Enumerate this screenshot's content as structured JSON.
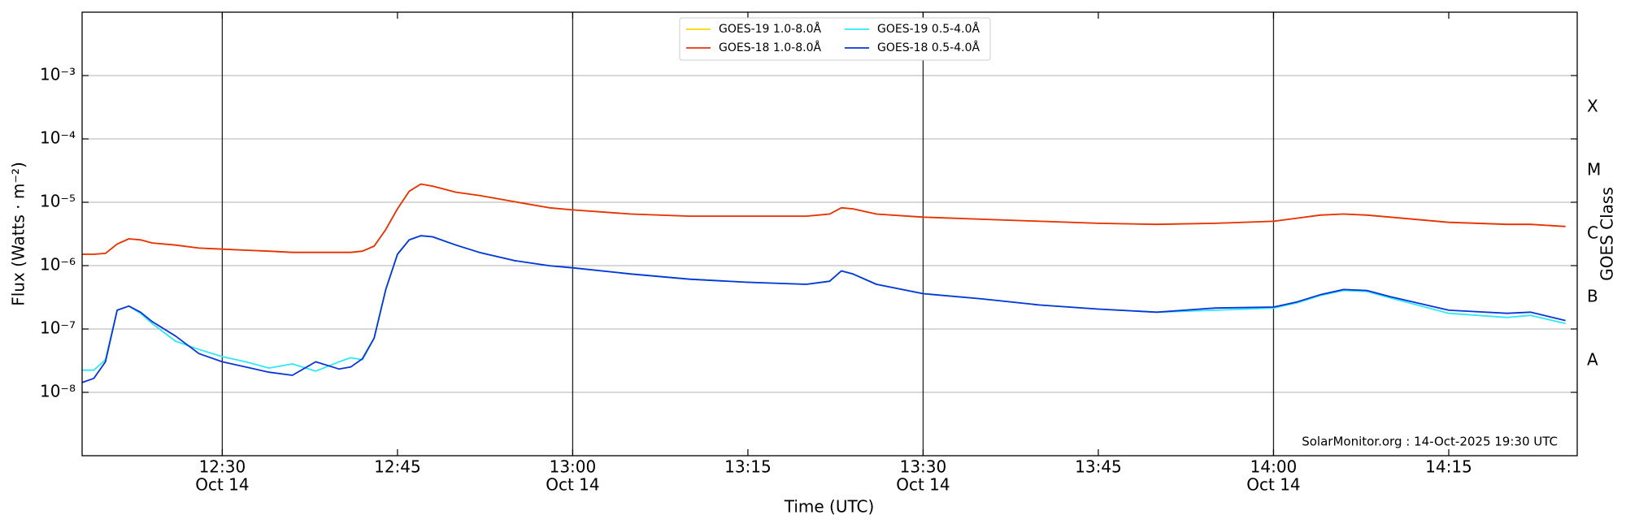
{
  "chart_data": {
    "type": "line",
    "xlabel": "Time (UTC)",
    "ylabel": "Flux (Watts · m⁻²)",
    "y2label": "GOES Class",
    "annotation": "SolarMonitor.org : 14-Oct-2025 19:30 UTC",
    "log_y": true,
    "grid": true,
    "legend": "upper center",
    "x": [
      "12:18",
      "12:19",
      "12:20",
      "12:21",
      "12:22",
      "12:23",
      "12:24",
      "12:26",
      "12:28",
      "12:30",
      "12:32",
      "12:34",
      "12:36",
      "12:38",
      "12:40",
      "12:41",
      "12:42",
      "12:43",
      "12:44",
      "12:45",
      "12:46",
      "12:47",
      "12:48",
      "12:50",
      "12:52",
      "12:55",
      "12:58",
      "13:00",
      "13:05",
      "13:10",
      "13:15",
      "13:20",
      "13:22",
      "13:23",
      "13:24",
      "13:26",
      "13:30",
      "13:35",
      "13:40",
      "13:45",
      "13:50",
      "13:55",
      "14:00",
      "14:02",
      "14:04",
      "14:06",
      "14:08",
      "14:10",
      "14:15",
      "14:20",
      "14:22",
      "14:25"
    ],
    "xlim": [
      "12:18",
      "14:26"
    ],
    "xticks": [
      {
        "value": "12:30",
        "date": "Oct 14"
      },
      "12:45",
      {
        "value": "13:00",
        "date": "Oct 14"
      },
      "13:15",
      {
        "value": "13:30",
        "date": "Oct 14"
      },
      "13:45",
      {
        "value": "14:00",
        "date": "Oct 14"
      },
      "14:15"
    ],
    "ylim": [
      1e-09,
      0.01
    ],
    "yticks": [
      {
        "value": 1e-08,
        "label": "10⁻⁸"
      },
      {
        "value": 1e-07,
        "label": "10⁻⁷"
      },
      {
        "value": 1e-06,
        "label": "10⁻⁶"
      },
      {
        "value": 1e-05,
        "label": "10⁻⁵"
      },
      {
        "value": 0.0001,
        "label": "10⁻⁴"
      },
      {
        "value": 0.001,
        "label": "10⁻³"
      }
    ],
    "y2lim": [
      1e-09,
      0.01
    ],
    "y2ticks": [
      {
        "value": 3.16e-08,
        "label": "A"
      },
      {
        "value": 3.16e-07,
        "label": "B"
      },
      {
        "value": 3.16e-06,
        "label": "C"
      },
      {
        "value": 3.16e-05,
        "label": "M"
      },
      {
        "value": 0.000316,
        "label": "X"
      }
    ],
    "series": [
      {
        "name": "GOES-19 1.0-8.0Å",
        "color": "#ffd700",
        "values": [
          1.51e-06,
          1.51e-06,
          1.56e-06,
          2.19e-06,
          2.65e-06,
          2.55e-06,
          2.28e-06,
          2.11e-06,
          1.89e-06,
          1.82e-06,
          1.75e-06,
          1.69e-06,
          1.62e-06,
          1.62e-06,
          1.62e-06,
          1.62e-06,
          1.69e-06,
          2.03e-06,
          3.71e-06,
          7.87e-06,
          1.49e-05,
          1.94e-05,
          1.8e-05,
          1.44e-05,
          1.28e-05,
          1.02e-05,
          8.17e-06,
          7.57e-06,
          6.52e-06,
          6.04e-06,
          6.04e-06,
          6.04e-06,
          6.52e-06,
          8.17e-06,
          7.87e-06,
          6.52e-06,
          5.82e-06,
          5.4e-06,
          5.01e-06,
          4.65e-06,
          4.48e-06,
          4.65e-06,
          5.01e-06,
          5.61e-06,
          6.28e-06,
          6.52e-06,
          6.28e-06,
          5.82e-06,
          4.83e-06,
          4.48e-06,
          4.48e-06,
          4.15e-06
        ]
      },
      {
        "name": "GOES-18 1.0-8.0Å",
        "color": "#e8300e",
        "values": [
          1.51e-06,
          1.51e-06,
          1.56e-06,
          2.19e-06,
          2.65e-06,
          2.55e-06,
          2.28e-06,
          2.11e-06,
          1.89e-06,
          1.82e-06,
          1.75e-06,
          1.69e-06,
          1.62e-06,
          1.62e-06,
          1.62e-06,
          1.62e-06,
          1.69e-06,
          2.03e-06,
          3.71e-06,
          7.87e-06,
          1.49e-05,
          1.94e-05,
          1.8e-05,
          1.44e-05,
          1.28e-05,
          1.02e-05,
          8.17e-06,
          7.57e-06,
          6.52e-06,
          6.04e-06,
          6.04e-06,
          6.04e-06,
          6.52e-06,
          8.17e-06,
          7.87e-06,
          6.52e-06,
          5.82e-06,
          5.4e-06,
          5.01e-06,
          4.65e-06,
          4.48e-06,
          4.65e-06,
          5.01e-06,
          5.61e-06,
          6.28e-06,
          6.52e-06,
          6.28e-06,
          5.82e-06,
          4.83e-06,
          4.48e-06,
          4.48e-06,
          4.15e-06
        ]
      },
      {
        "name": "GOES-19 0.5-4.0Å",
        "color": "#2ee8f5",
        "values": [
          2.24e-08,
          2.24e-08,
          3.27e-08,
          1.98e-07,
          2.3e-07,
          1.77e-07,
          1.22e-07,
          6.43e-08,
          4.75e-08,
          3.66e-08,
          3.03e-08,
          2.42e-08,
          2.81e-08,
          2.16e-08,
          3.03e-08,
          3.52e-08,
          3.27e-08,
          7.18e-08,
          4.2e-07,
          1.51e-06,
          2.55e-06,
          2.96e-06,
          2.85e-06,
          2.11e-06,
          1.62e-06,
          1.2e-06,
          9.96e-07,
          9.24e-07,
          7.38e-07,
          6.11e-07,
          5.46e-07,
          5.07e-07,
          5.68e-07,
          8.26e-07,
          7.38e-07,
          5.07e-07,
          3.61e-07,
          2.99e-07,
          2.39e-07,
          2.06e-07,
          1.84e-07,
          1.98e-07,
          2.14e-07,
          2.58e-07,
          3.36e-07,
          4.05e-07,
          3.9e-07,
          3.1e-07,
          1.77e-07,
          1.52e-07,
          1.64e-07,
          1.22e-07
        ]
      },
      {
        "name": "GOES-18 0.5-4.0Å",
        "color": "#0a35d8",
        "values": [
          1.43e-08,
          1.66e-08,
          3.03e-08,
          1.98e-07,
          2.3e-07,
          1.84e-07,
          1.31e-07,
          7.74e-08,
          4.09e-08,
          3.03e-08,
          2.51e-08,
          2.08e-08,
          1.86e-08,
          3.03e-08,
          2.33e-08,
          2.51e-08,
          3.39e-08,
          7.18e-08,
          4.2e-07,
          1.51e-06,
          2.55e-06,
          2.96e-06,
          2.85e-06,
          2.11e-06,
          1.62e-06,
          1.2e-06,
          9.96e-07,
          9.24e-07,
          7.38e-07,
          6.11e-07,
          5.46e-07,
          5.07e-07,
          5.68e-07,
          8.26e-07,
          7.38e-07,
          5.07e-07,
          3.61e-07,
          2.99e-07,
          2.39e-07,
          2.06e-07,
          1.84e-07,
          2.14e-07,
          2.22e-07,
          2.67e-07,
          3.48e-07,
          4.2e-07,
          4.05e-07,
          3.23e-07,
          1.98e-07,
          1.77e-07,
          1.84e-07,
          1.36e-07
        ]
      }
    ]
  }
}
